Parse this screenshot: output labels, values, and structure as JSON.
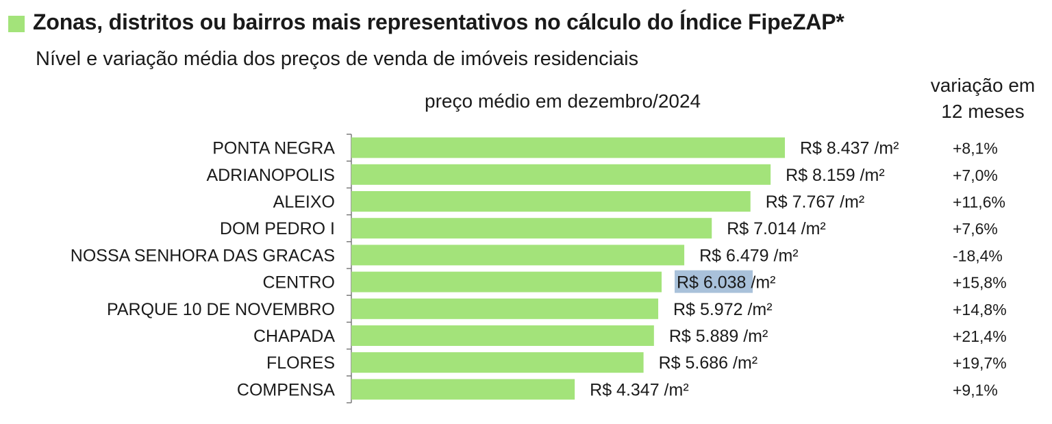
{
  "title": "Zonas, distritos ou bairros mais representativos no cálculo do Índice FipeZAP*",
  "subtitle": "Nível e variação média dos preços de venda de imóveis residenciais",
  "column_headers": {
    "price": "preço médio em dezembro/2024",
    "variation_line1": "variação em",
    "variation_line2": "12 meses"
  },
  "colors": {
    "bar": "#a3e37a",
    "highlight": "#a9c1da",
    "title_square": "#a3e37a"
  },
  "chart_data": {
    "type": "bar",
    "orientation": "horizontal",
    "title": "Zonas, distritos ou bairros mais representativos no cálculo do Índice FipeZAP*",
    "subtitle": "Nível e variação média dos preços de venda de imóveis residenciais",
    "xlabel": "preço médio em dezembro/2024",
    "ylabel": "",
    "xlim": [
      0,
      8437
    ],
    "grid": false,
    "categories": [
      "PONTA NEGRA",
      "ADRIANOPOLIS",
      "ALEIXO",
      "DOM PEDRO I",
      "NOSSA SENHORA DAS GRACAS",
      "CENTRO",
      "PARQUE 10 DE NOVEMBRO",
      "CHAPADA",
      "FLORES",
      "COMPENSA"
    ],
    "values": [
      8437,
      8159,
      7767,
      7014,
      6479,
      6038,
      5972,
      5889,
      5686,
      4347
    ],
    "value_labels": [
      "R$ 8.437 /m²",
      "R$ 8.159 /m²",
      "R$ 7.767 /m²",
      "R$ 7.014 /m²",
      "R$ 6.479 /m²",
      "R$ 6.038 /m²",
      "R$ 5.972 /m²",
      "R$ 5.889 /m²",
      "R$ 5.686 /m²",
      "R$ 4.347 /m²"
    ],
    "highlight_index": 5,
    "variation_labels": [
      "+8,1%",
      "+7,0%",
      "+11,6%",
      "+7,6%",
      "-18,4%",
      "+15,8%",
      "+14,8%",
      "+21,4%",
      "+19,7%",
      "+9,1%"
    ]
  }
}
